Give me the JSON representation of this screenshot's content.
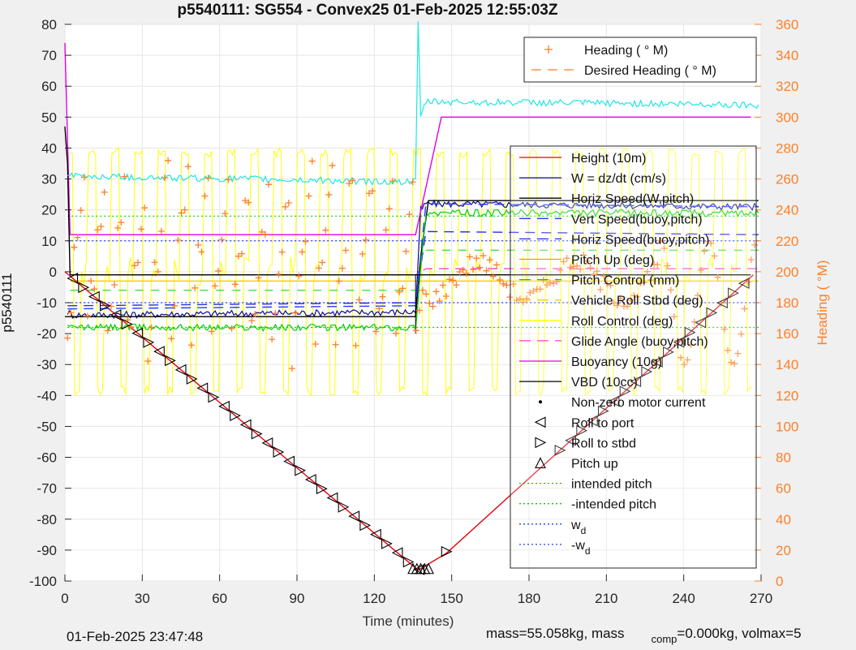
{
  "figure": {
    "title": "p5540111: SG554 - Convex25 01-Feb-2025 12:55:03Z",
    "footer_date": "01-Feb-2025 23:47:48",
    "footer_mass_a": "mass=55.058kg, mass",
    "footer_mass_sub": "comp",
    "footer_mass_b": "=0.000kg, volmax=5"
  },
  "chart_data": {
    "type": "line",
    "title": "p5540111: SG554 - Convex25 01-Feb-2025 12:55:03Z",
    "xlabel": "Time (minutes)",
    "ylabel": "p5540111",
    "y2label": "Heading (  °M)",
    "xlim": [
      0,
      270
    ],
    "ylim": [
      -100,
      80
    ],
    "y2lim": [
      0,
      360
    ],
    "xticks": [
      0,
      30,
      60,
      90,
      120,
      150,
      180,
      210,
      240,
      270
    ],
    "yticks": [
      -100,
      -90,
      -80,
      -70,
      -60,
      -50,
      -40,
      -30,
      -20,
      -10,
      0,
      10,
      20,
      30,
      40,
      50,
      60,
      70,
      80
    ],
    "y2ticks": [
      0,
      20,
      40,
      60,
      80,
      100,
      120,
      140,
      160,
      180,
      200,
      220,
      240,
      260,
      280,
      300,
      320,
      340,
      360
    ],
    "colors": {
      "height": "#e8000b",
      "w": "#0a0a8c",
      "horiz": "#000000",
      "vert": "#1f3fff",
      "hbuoy": "#2a2ae6",
      "pitchup": "#ff9900",
      "pitchctl": "#00d000",
      "roll": "#f2d200",
      "rollctl": "#ffff00",
      "glide": "#ff3fd2",
      "buoy": "#e100e1",
      "vbd": "#000000",
      "heading": "#ff7f27",
      "cyan": "#1ee6e6"
    },
    "legend_heading": [
      {
        "label": "Heading (  ° M)",
        "style": "plus",
        "color": "#ff7f27"
      },
      {
        "label": "Desired Heading (   ° M)",
        "style": "dash",
        "color": "#ff7f27"
      }
    ],
    "legend_main": [
      {
        "label": "Height (10m)",
        "style": "solid",
        "color": "#e8000b"
      },
      {
        "label": "W = dz/dt (cm/s)",
        "style": "solid",
        "color": "#0a0a8c"
      },
      {
        "label": "Horiz Speed(W,pitch)",
        "style": "solid",
        "color": "#000000"
      },
      {
        "label": "Vert Speed(buoy,pitch)",
        "style": "dash",
        "color": "#1f3fff"
      },
      {
        "label": "Horiz Speed(buoy,pitch)",
        "style": "dash",
        "color": "#2a2ae6"
      },
      {
        "label": "Pitch Up (deg)",
        "style": "solid",
        "color": "#ff9900"
      },
      {
        "label": "Pitch Control (mm)",
        "style": "dash",
        "color": "#00d000"
      },
      {
        "label": "Vehicle Roll Stbd (deg)",
        "style": "dash",
        "color": "#f2d200"
      },
      {
        "label": "Roll Control (deg)",
        "style": "solid",
        "color": "#ffff00"
      },
      {
        "label": "Glide Angle (buoy,pitch)",
        "style": "dash",
        "color": "#ff3fd2"
      },
      {
        "label": "Buoyancy (10g)",
        "style": "solid",
        "color": "#e100e1"
      },
      {
        "label": "VBD (10cc)",
        "style": "solid",
        "color": "#000000"
      },
      {
        "label": "Non-zero motor current",
        "style": "dot",
        "color": "#000000"
      },
      {
        "label": "Roll to port",
        "style": "tri-left",
        "color": "#000000"
      },
      {
        "label": "Roll to stbd",
        "style": "tri-right",
        "color": "#000000"
      },
      {
        "label": "Pitch up",
        "style": "tri-up",
        "color": "#000000"
      },
      {
        "label": "intended pitch",
        "style": "dotted",
        "color": "#00d000"
      },
      {
        "label": "-intended pitch",
        "style": "dotted",
        "color": "#00d000"
      },
      {
        "label": "w",
        "sub": "d",
        "style": "dotted",
        "color": "#1f3fff"
      },
      {
        "label": "-w",
        "sub": "d",
        "style": "dotted",
        "color": "#1f3fff"
      }
    ],
    "series": [
      {
        "name": "Height (10m)",
        "color": "#e8000b",
        "x": [
          0,
          137,
          148,
          267
        ],
        "y": [
          0,
          -96.5,
          -91,
          -1
        ]
      },
      {
        "name": "W = dz/dt (cm/s)",
        "color": "#0a0a8c",
        "x": [
          1,
          3,
          136,
          138,
          140,
          269
        ],
        "y": [
          -13,
          -14,
          -13,
          20,
          22,
          21
        ]
      },
      {
        "name": "Horiz Speed(W,pitch)",
        "color": "#000000",
        "x": [
          0,
          136,
          138,
          141,
          269
        ],
        "y": [
          -14.5,
          -14.5,
          5,
          23,
          23
        ]
      },
      {
        "name": "Vert Speed(buoy,pitch)",
        "color": "#1f3fff",
        "x": [
          1,
          136,
          140,
          269
        ],
        "y": [
          -12,
          -11,
          22,
          21
        ]
      },
      {
        "name": "Horiz Speed(buoy,pitch)",
        "color": "#2a2ae6",
        "x": [
          1,
          136,
          140,
          269
        ],
        "y": [
          -11,
          -10,
          13,
          12
        ]
      },
      {
        "name": "Pitch Control (mm)",
        "color": "#00d000",
        "x": [
          1,
          136,
          140,
          269
        ],
        "y": [
          -18,
          -18,
          19,
          19
        ]
      },
      {
        "name": "Glide Angle (buoy,pitch)",
        "color": "#ff3fd2",
        "x": [
          1,
          136,
          140,
          269
        ],
        "y": [
          -1,
          -1,
          1,
          1
        ]
      },
      {
        "name": "Buoyancy (10g)",
        "color": "#e100e1",
        "x": [
          0,
          2,
          136,
          146,
          266
        ],
        "y": [
          74,
          12,
          12,
          50,
          50
        ]
      },
      {
        "name": "VBD (10cc)",
        "color": "#000000",
        "x": [
          0,
          1,
          2,
          266
        ],
        "y": [
          47,
          35,
          -1,
          -1
        ]
      },
      {
        "name": "cyan",
        "color": "#1ee6e6",
        "x": [
          1,
          136,
          137,
          138,
          140,
          269
        ],
        "y": [
          31,
          29,
          80,
          50,
          55,
          54
        ]
      }
    ]
  }
}
